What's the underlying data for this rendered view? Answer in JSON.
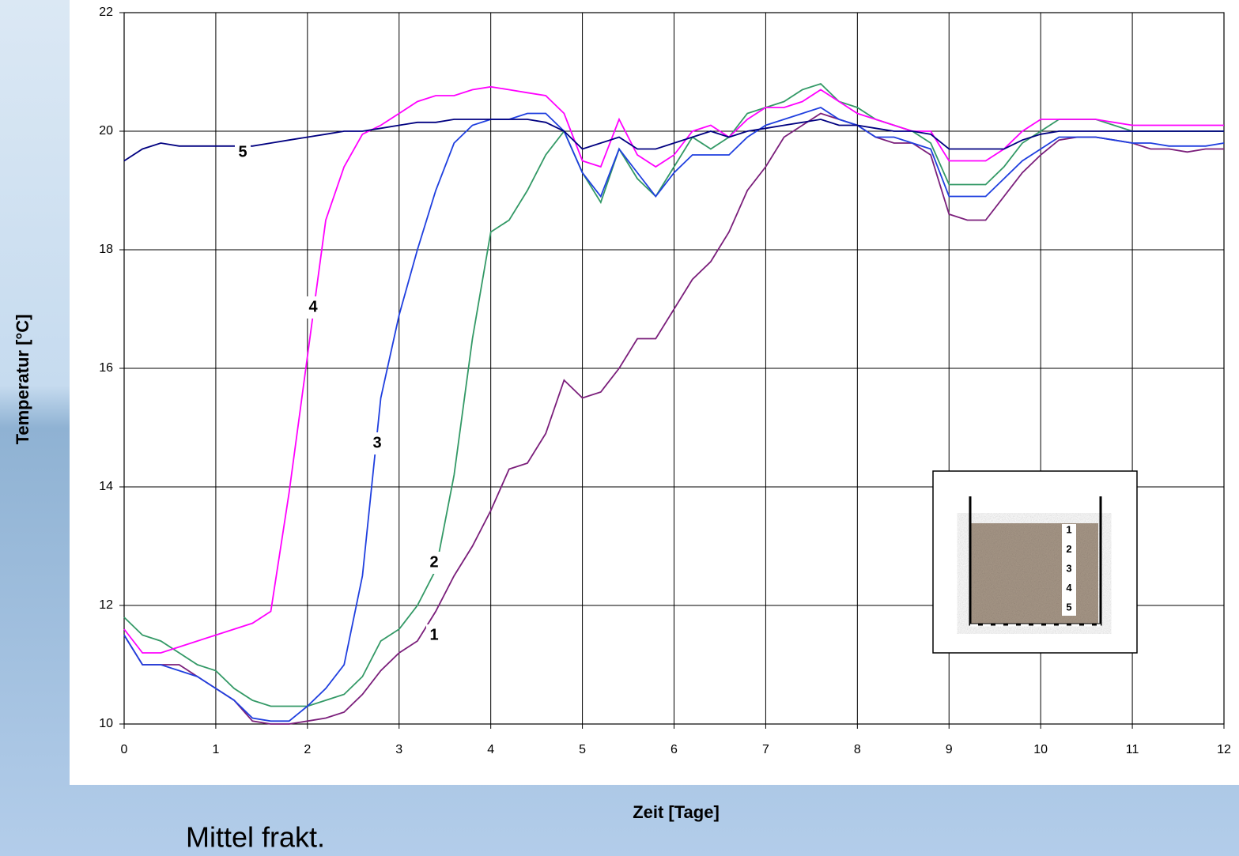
{
  "chart_data": {
    "type": "line",
    "xlabel": "Zeit [Tage]",
    "ylabel": "Temperatur [°C]",
    "subtitle": "Mittel frakt.",
    "xlim": [
      0,
      12
    ],
    "xticks": [
      0,
      1,
      2,
      3,
      4,
      5,
      6,
      7,
      8,
      9,
      10,
      11,
      12
    ],
    "ylim": [
      10,
      22
    ],
    "yticks": [
      10,
      12,
      14,
      16,
      18,
      20,
      22
    ],
    "grid": true,
    "x": [
      0,
      0.2,
      0.4,
      0.6,
      0.8,
      1,
      1.2,
      1.4,
      1.6,
      1.8,
      2,
      2.2,
      2.4,
      2.6,
      2.8,
      3,
      3.2,
      3.4,
      3.6,
      3.8,
      4,
      4.2,
      4.4,
      4.6,
      4.8,
      5,
      5.2,
      5.4,
      5.6,
      5.8,
      6,
      6.2,
      6.4,
      6.6,
      6.8,
      7,
      7.2,
      7.4,
      7.6,
      7.8,
      8,
      8.2,
      8.4,
      8.6,
      8.8,
      9,
      9.2,
      9.4,
      9.6,
      9.8,
      10,
      10.2,
      10.4,
      10.6,
      10.8,
      11,
      11.2,
      11.4,
      11.6,
      11.8,
      12
    ],
    "series": [
      {
        "name": "1",
        "color": "#7b1f7b",
        "values": [
          11.5,
          11.0,
          11.0,
          11.0,
          10.8,
          10.6,
          10.4,
          10.05,
          10.0,
          10.0,
          10.05,
          10.1,
          10.2,
          10.5,
          10.9,
          11.2,
          11.4,
          11.9,
          12.5,
          13.0,
          13.6,
          14.3,
          14.4,
          14.9,
          15.8,
          15.5,
          15.6,
          16.0,
          16.5,
          16.5,
          17.0,
          17.5,
          17.8,
          18.3,
          19.0,
          19.4,
          19.9,
          20.1,
          20.3,
          20.2,
          20.1,
          19.9,
          19.8,
          19.8,
          19.6,
          18.6,
          18.5,
          18.5,
          18.9,
          19.3,
          19.6,
          19.85,
          19.9,
          19.9,
          19.85,
          19.8,
          19.7,
          19.7,
          19.65,
          19.7,
          19.7
        ]
      },
      {
        "name": "2",
        "color": "#339966",
        "values": [
          11.8,
          11.5,
          11.4,
          11.2,
          11.0,
          10.9,
          10.6,
          10.4,
          10.3,
          10.3,
          10.3,
          10.4,
          10.5,
          10.8,
          11.4,
          11.6,
          12.0,
          12.6,
          14.2,
          16.5,
          18.3,
          18.5,
          19.0,
          19.6,
          20.0,
          19.3,
          18.8,
          19.7,
          19.2,
          18.9,
          19.4,
          19.9,
          19.7,
          19.9,
          20.3,
          20.4,
          20.5,
          20.7,
          20.8,
          20.5,
          20.4,
          20.2,
          20.1,
          20.0,
          19.8,
          19.1,
          19.1,
          19.1,
          19.4,
          19.8,
          20.0,
          20.2,
          20.2,
          20.2,
          20.1,
          20.0,
          20.0,
          20.0,
          20.0,
          20.0,
          20.0
        ]
      },
      {
        "name": "3",
        "color": "#1f3fdf",
        "values": [
          11.5,
          11.0,
          11.0,
          10.9,
          10.8,
          10.6,
          10.4,
          10.1,
          10.05,
          10.05,
          10.3,
          10.6,
          11.0,
          12.5,
          15.5,
          16.9,
          18.0,
          19.0,
          19.8,
          20.1,
          20.2,
          20.2,
          20.3,
          20.3,
          20.0,
          19.3,
          18.9,
          19.7,
          19.3,
          18.9,
          19.3,
          19.6,
          19.6,
          19.6,
          19.9,
          20.1,
          20.2,
          20.3,
          20.4,
          20.2,
          20.1,
          19.9,
          19.9,
          19.8,
          19.7,
          18.9,
          18.9,
          18.9,
          19.2,
          19.5,
          19.7,
          19.9,
          19.9,
          19.9,
          19.85,
          19.8,
          19.8,
          19.75,
          19.75,
          19.75,
          19.8
        ]
      },
      {
        "name": "4",
        "color": "#ff00ff",
        "values": [
          11.6,
          11.2,
          11.2,
          11.3,
          11.4,
          11.5,
          11.6,
          11.7,
          11.9,
          13.9,
          16.2,
          18.5,
          19.4,
          19.95,
          20.1,
          20.3,
          20.5,
          20.6,
          20.6,
          20.7,
          20.75,
          20.7,
          20.65,
          20.6,
          20.3,
          19.5,
          19.4,
          20.2,
          19.6,
          19.4,
          19.6,
          20.0,
          20.1,
          19.9,
          20.2,
          20.4,
          20.4,
          20.5,
          20.7,
          20.5,
          20.3,
          20.2,
          20.1,
          20.0,
          20.0,
          19.5,
          19.5,
          19.5,
          19.7,
          20.0,
          20.2,
          20.2,
          20.2,
          20.2,
          20.15,
          20.1,
          20.1,
          20.1,
          20.1,
          20.1,
          20.1
        ]
      },
      {
        "name": "5",
        "color": "#000080",
        "values": [
          19.5,
          19.7,
          19.8,
          19.75,
          19.75,
          19.75,
          19.75,
          19.75,
          19.8,
          19.85,
          19.9,
          19.95,
          20.0,
          20.0,
          20.05,
          20.1,
          20.15,
          20.15,
          20.2,
          20.2,
          20.2,
          20.2,
          20.2,
          20.15,
          20.0,
          19.7,
          19.8,
          19.9,
          19.7,
          19.7,
          19.8,
          19.9,
          20.0,
          19.9,
          20.0,
          20.05,
          20.1,
          20.15,
          20.2,
          20.1,
          20.1,
          20.05,
          20.0,
          20.0,
          19.95,
          19.7,
          19.7,
          19.7,
          19.7,
          19.85,
          19.95,
          20.0,
          20.0,
          20.0,
          20.0,
          20.0,
          20.0,
          20.0,
          20.0,
          20.0,
          20.0
        ]
      }
    ],
    "inset_labels": [
      "1",
      "2",
      "3",
      "4",
      "5"
    ]
  }
}
